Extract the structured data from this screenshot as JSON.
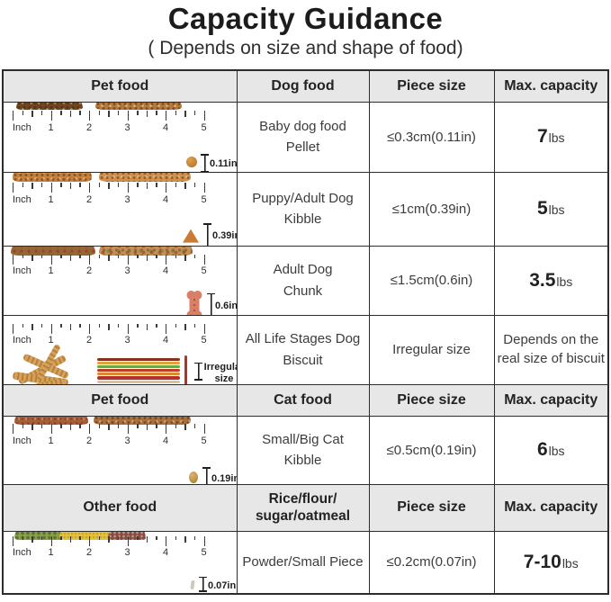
{
  "title": "Capacity Guidance",
  "subtitle": "( Depends on size and shape of food)",
  "palette": {
    "header_bg": "#e7e7e7",
    "border": "#2c2c2c",
    "text": "#3a3a3a",
    "stick_red": "#b63324",
    "kibble_brown": "#b5793f"
  },
  "ruler": {
    "unit_label": "Inch",
    "numbers": [
      "1",
      "2",
      "3",
      "4",
      "5"
    ]
  },
  "headers": [
    {
      "c1": "Pet food",
      "c2": "Dog food",
      "c3": "Piece size",
      "c4": "Max. capacity"
    },
    {
      "c1": "Pet food",
      "c2": "Cat food",
      "c3": "Piece size",
      "c4": "Max. capacity"
    },
    {
      "c1": "Other food",
      "c2a": "Rice/flour/",
      "c2b": "sugar/oatmeal",
      "c3": "Piece size",
      "c4": "Max. capacity"
    }
  ],
  "rows": [
    {
      "name1": "Baby dog food",
      "name2": "Pellet",
      "size": "≤0.3cm(0.11in)",
      "cap_value": "7",
      "cap_unit": "lbs",
      "annotation": "0.11in"
    },
    {
      "name1": "Puppy/Adult Dog",
      "name2": "Kibble",
      "size": "≤1cm(0.39in)",
      "cap_value": "5",
      "cap_unit": "lbs",
      "annotation": "0.39in"
    },
    {
      "name1": "Adult Dog",
      "name2": "Chunk",
      "size": "≤1.5cm(0.6in)",
      "cap_value": "3.5",
      "cap_unit": "lbs",
      "annotation": "0.6in"
    },
    {
      "name1": "All Life Stages Dog",
      "name2": "Biscuit",
      "size": "Irregular size",
      "cap_text1": "Depends on the",
      "cap_text2": "real size of biscuit",
      "annotation1": "Irregular",
      "annotation2": "size"
    },
    {
      "name1": "Small/Big Cat",
      "name2": "Kibble",
      "size": "≤0.5cm(0.19in)",
      "cap_value": "6",
      "cap_unit": "lbs",
      "annotation": "0.19in"
    },
    {
      "name1": "Powder/Small Piece",
      "size": "≤0.2cm(0.07in)",
      "cap_value": "7-10",
      "cap_unit": "lbs",
      "annotation": "0.07in"
    }
  ]
}
